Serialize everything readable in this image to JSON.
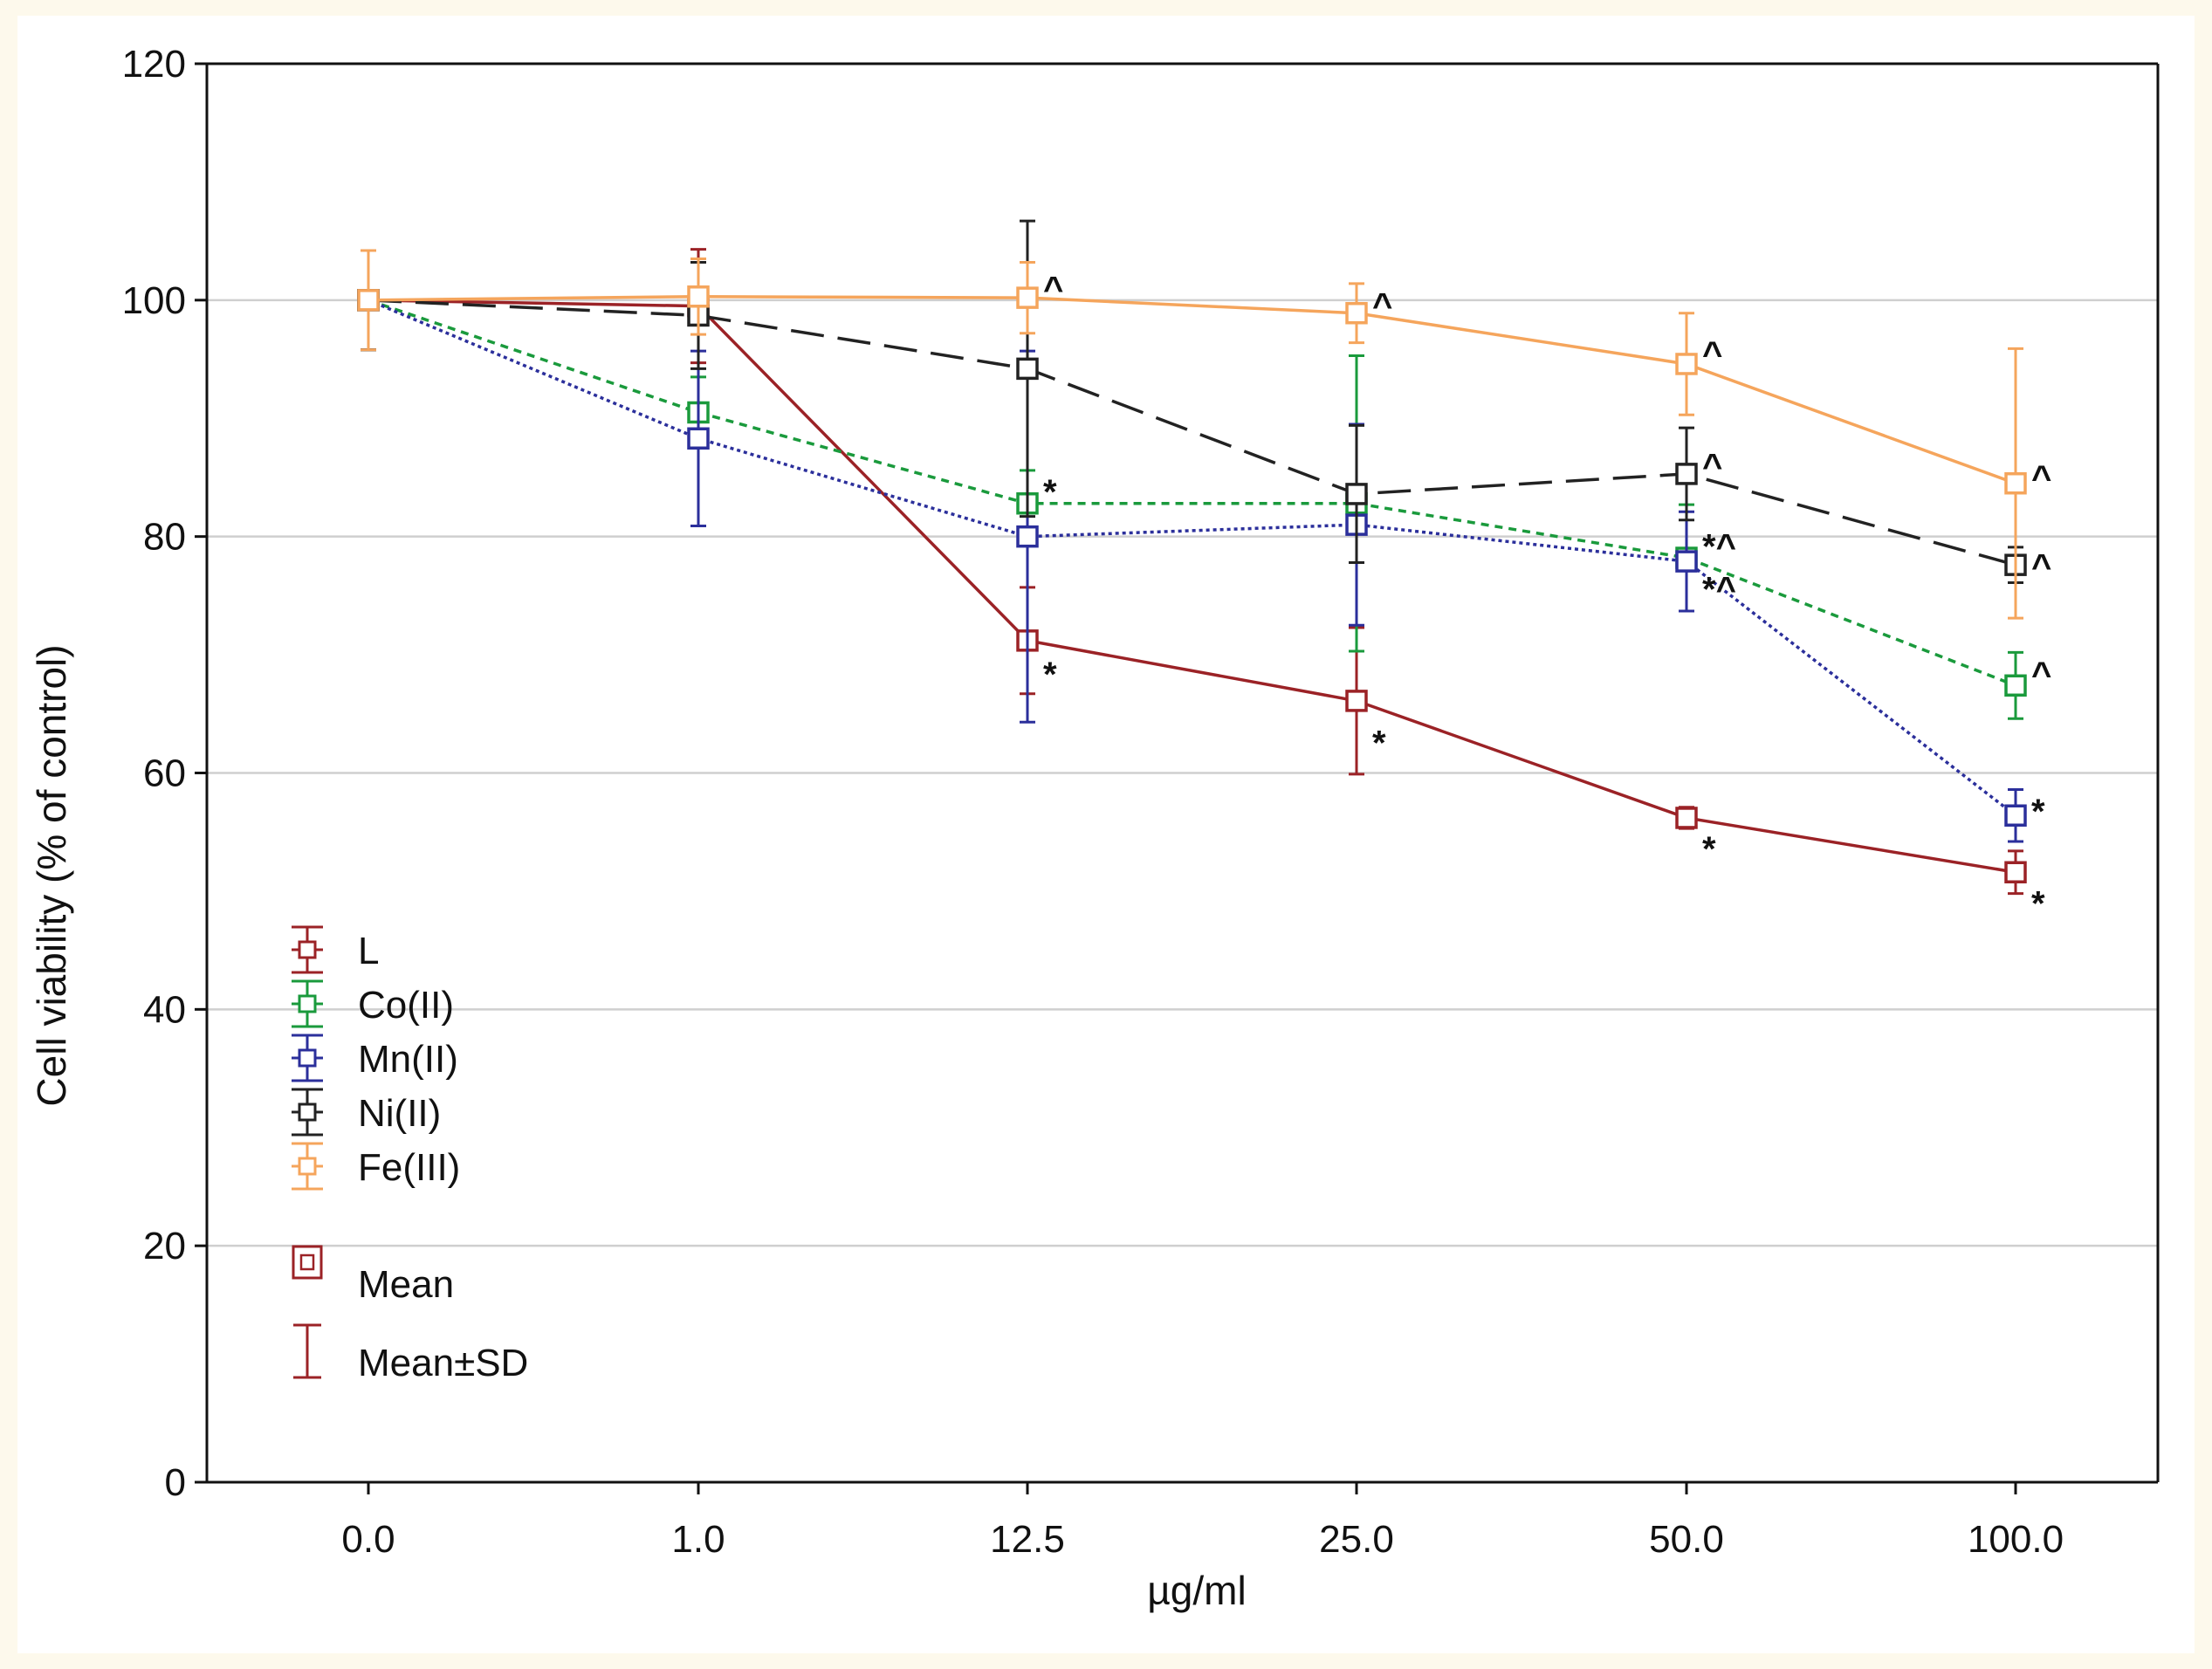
{
  "chart_data": {
    "type": "line",
    "title": "",
    "xlabel": "µg/ml",
    "ylabel": "Cell viability (% of control)",
    "categories": [
      "0.0",
      "1.0",
      "12.5",
      "25.0",
      "50.0",
      "100.0"
    ],
    "ylim": [
      0,
      120
    ],
    "yticks": [
      0,
      20,
      40,
      60,
      80,
      100,
      120
    ],
    "gridlines": [
      20,
      40,
      60,
      80,
      100
    ],
    "legend_position": "lower-left",
    "series": [
      {
        "name": "L",
        "color": "#9b2226",
        "dash": "solid",
        "values": [
          100,
          99.5,
          71.2,
          66.1,
          56.2,
          51.6
        ],
        "sd": [
          4.2,
          4.8,
          4.5,
          6.2,
          0.9,
          1.8
        ]
      },
      {
        "name": "Co(II)",
        "color": "#1a9a3c",
        "dash": "short-dash",
        "values": [
          100,
          90.5,
          82.8,
          82.8,
          78.2,
          67.4
        ],
        "sd": [
          4.2,
          3.0,
          2.8,
          12.5,
          4.5,
          2.8
        ]
      },
      {
        "name": "Mn(II)",
        "color": "#2b2f9b",
        "dash": "dotted",
        "values": [
          100,
          88.3,
          80.0,
          81.0,
          77.9,
          56.4
        ],
        "sd": [
          4.2,
          7.4,
          15.7,
          8.5,
          4.2,
          2.2
        ]
      },
      {
        "name": "Ni(II)",
        "color": "#222222",
        "dash": "long-dash",
        "values": [
          100,
          98.7,
          94.2,
          83.6,
          85.3,
          77.6
        ],
        "sd": [
          4.2,
          4.5,
          12.5,
          5.8,
          3.9,
          1.5
        ]
      },
      {
        "name": "Fe(III)",
        "color": "#f5a55c",
        "dash": "solid",
        "values": [
          100,
          100.3,
          100.2,
          98.9,
          94.6,
          84.5
        ],
        "sd": [
          4.2,
          3.2,
          3.0,
          2.5,
          4.3,
          11.4
        ]
      }
    ],
    "annotations": [
      {
        "category": "12.5",
        "value": 83.8,
        "series": "Co(II)",
        "text": "*"
      },
      {
        "category": "12.5",
        "value": 68.4,
        "series": "L",
        "text": "*"
      },
      {
        "category": "25.0",
        "value": 62.6,
        "series": "L",
        "text": "*"
      },
      {
        "category": "50.0",
        "value": 53.6,
        "series": "L",
        "text": "*"
      },
      {
        "category": "100.0",
        "value": 49.0,
        "series": "L",
        "text": "*"
      },
      {
        "category": "100.0",
        "value": 56.8,
        "series": "Mn(II)",
        "text": "*"
      },
      {
        "category": "12.5",
        "value": 101.0,
        "series": "Fe(III)",
        "text": "^"
      },
      {
        "category": "25.0",
        "value": 99.6,
        "series": "Fe(III)",
        "text": "^"
      },
      {
        "category": "50.0",
        "value": 95.5,
        "series": "Fe(III)",
        "text": "^"
      },
      {
        "category": "100.0",
        "value": 85.0,
        "series": "Fe(III)",
        "text": "^"
      },
      {
        "category": "50.0",
        "value": 86.0,
        "series": "Ni(II)",
        "text": "^"
      },
      {
        "category": "100.0",
        "value": 77.5,
        "series": "Ni(II)",
        "text": "^"
      },
      {
        "category": "100.0",
        "value": 68.4,
        "series": "Co(II)",
        "text": "^"
      },
      {
        "category": "50.0",
        "value": 79.2,
        "series": "Co(II)",
        "text": "*^"
      },
      {
        "category": "50.0",
        "value": 75.6,
        "series": "Mn(II)",
        "text": "*^"
      }
    ],
    "legend_extra": [
      "Mean",
      "Mean±SD"
    ]
  }
}
